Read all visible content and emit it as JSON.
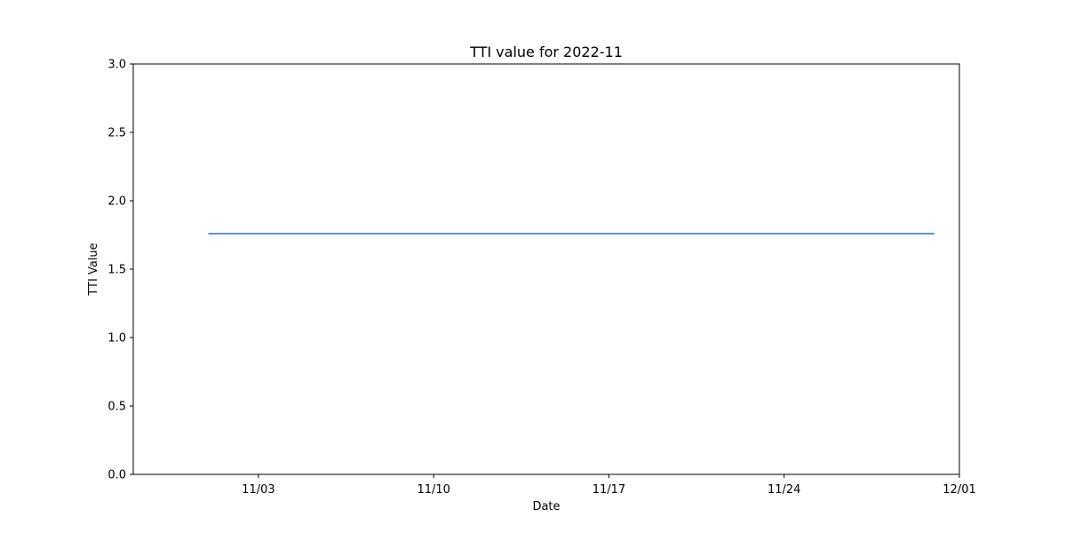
{
  "chart_data": {
    "type": "line",
    "title": "TTI value for 2022-11",
    "xlabel": "Date",
    "ylabel": "TTI Value",
    "xlim": [
      "2022-10-29",
      "2022-12-01"
    ],
    "ylim": [
      0,
      3
    ],
    "x_ticks": [
      {
        "date": "2022-11-03",
        "label": "11/03"
      },
      {
        "date": "2022-11-10",
        "label": "11/10"
      },
      {
        "date": "2022-11-17",
        "label": "11/17"
      },
      {
        "date": "2022-11-24",
        "label": "11/24"
      },
      {
        "date": "2022-12-01",
        "label": "12/01"
      }
    ],
    "y_ticks": [
      {
        "value": 0.0,
        "label": "0.0"
      },
      {
        "value": 0.5,
        "label": "0.5"
      },
      {
        "value": 1.0,
        "label": "1.0"
      },
      {
        "value": 1.5,
        "label": "1.5"
      },
      {
        "value": 2.0,
        "label": "2.0"
      },
      {
        "value": 2.5,
        "label": "2.5"
      },
      {
        "value": 3.0,
        "label": "3.0"
      }
    ],
    "grid": false,
    "series": [
      {
        "color": "#1f77b4",
        "x": [
          "2022-11-01",
          "2022-11-30"
        ],
        "y": [
          1.76,
          1.76
        ]
      }
    ]
  }
}
